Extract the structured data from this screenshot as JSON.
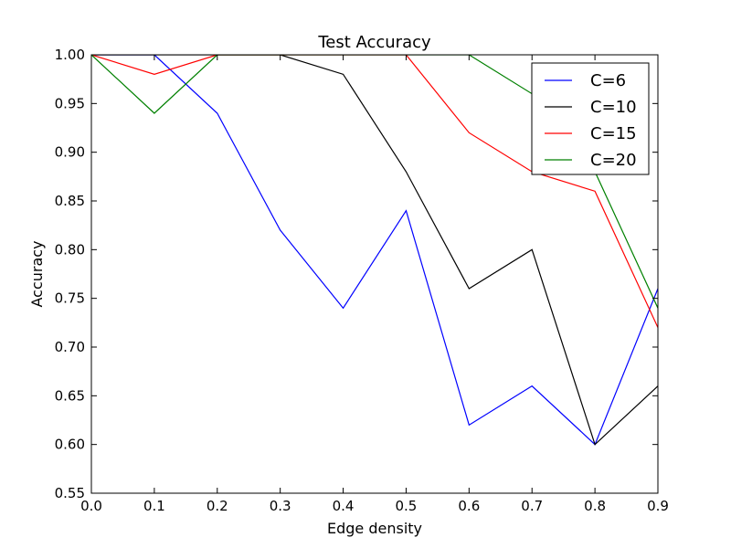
{
  "chart_data": {
    "type": "line",
    "title": "Test Accuracy",
    "xlabel": "Edge density",
    "ylabel": "Accuracy",
    "xlim": [
      0.0,
      0.9
    ],
    "ylim": [
      0.55,
      1.0
    ],
    "xticks": [
      "0.0",
      "0.1",
      "0.2",
      "0.3",
      "0.4",
      "0.5",
      "0.6",
      "0.7",
      "0.8",
      "0.9"
    ],
    "yticks": [
      "0.55",
      "0.60",
      "0.65",
      "0.70",
      "0.75",
      "0.80",
      "0.85",
      "0.90",
      "0.95",
      "1.00"
    ],
    "grid": false,
    "legend_position": "top-right",
    "x": [
      0.0,
      0.1,
      0.2,
      0.3,
      0.4,
      0.5,
      0.6,
      0.7,
      0.8,
      0.9
    ],
    "series": [
      {
        "name": "C=6",
        "color": "#0000ff",
        "values": [
          1.0,
          1.0,
          0.94,
          0.82,
          0.74,
          0.84,
          0.62,
          0.66,
          0.6,
          0.76
        ]
      },
      {
        "name": "C=10",
        "color": "#000000",
        "values": [
          1.0,
          1.0,
          1.0,
          1.0,
          0.98,
          0.88,
          0.76,
          0.8,
          0.6,
          0.66
        ]
      },
      {
        "name": "C=15",
        "color": "#ff0000",
        "values": [
          1.0,
          0.98,
          1.0,
          1.0,
          1.0,
          1.0,
          0.92,
          0.88,
          0.86,
          0.72
        ]
      },
      {
        "name": "C=20",
        "color": "#008000",
        "values": [
          1.0,
          0.94,
          1.0,
          1.0,
          1.0,
          1.0,
          1.0,
          0.96,
          0.88,
          0.74
        ]
      }
    ]
  }
}
